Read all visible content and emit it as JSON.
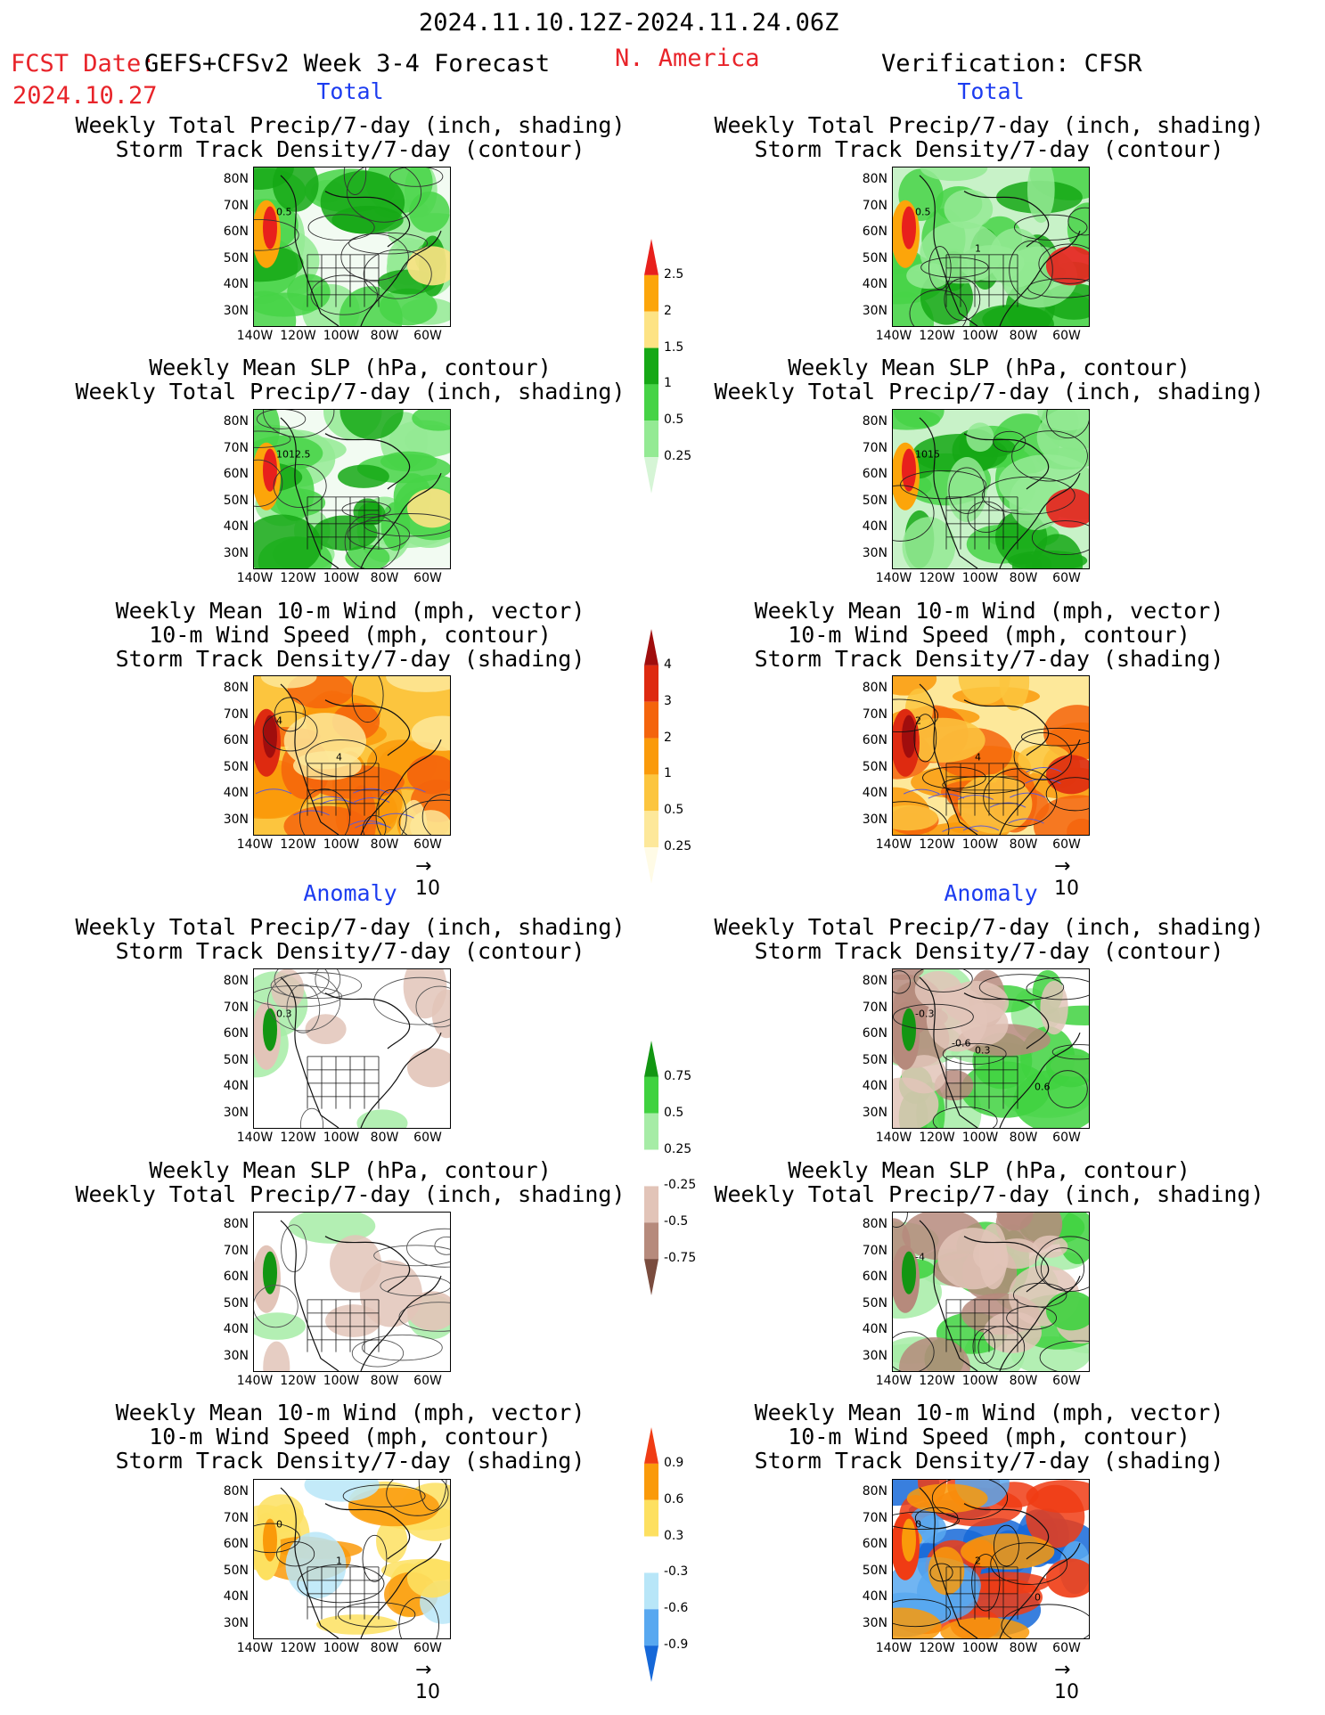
{
  "header": {
    "title": "2024.11.10.12Z-2024.11.24.06Z",
    "fcst_label": "FCST Date:",
    "model": "GEFS+CFSv2 Week 3-4 Forecast",
    "region": "N. America",
    "verification": "Verification: CFSR",
    "fcst_date": "2024.10.27"
  },
  "sections": {
    "total": "Total",
    "anomaly": "Anomaly"
  },
  "titles": {
    "precip_track": "Weekly Total Precip/7-day (inch, shading)\nStorm Track Density/7-day (contour)",
    "slp_precip": "Weekly Mean SLP (hPa, contour)\nWeekly Total Precip/7-day (inch, shading)",
    "wind_track": "Weekly Mean 10-m Wind (mph, vector)\n10-m Wind Speed (mph, contour)\nStorm Track Density/7-day (shading)"
  },
  "axes": {
    "lat_labels": [
      "80N",
      "70N",
      "60N",
      "50N",
      "40N",
      "30N"
    ],
    "lon_labels": [
      "140W",
      "120W",
      "100W",
      "80W",
      "60W"
    ]
  },
  "vector_ref": "10",
  "colorbars": {
    "precip_total": {
      "labels": [
        "2.5",
        "2",
        "1.5",
        "1",
        "0.5",
        "0.25"
      ],
      "colors": [
        "#e8201c",
        "#fca50a",
        "#fde384",
        "#15a815",
        "#46d346",
        "#94ea94",
        "#d6f5d6"
      ]
    },
    "track_total": {
      "labels": [
        "4",
        "3",
        "2",
        "1",
        "0.5",
        "0.25"
      ],
      "colors": [
        "#a00d0d",
        "#de2a10",
        "#f4640c",
        "#fa9a0a",
        "#fcc53e",
        "#fde89a",
        "#fffbe6"
      ]
    },
    "precip_anom": {
      "labels": [
        "0.75",
        "0.5",
        "0.25",
        "-0.25",
        "-0.5",
        "-0.75"
      ],
      "colors": [
        "#129612",
        "#3fd23f",
        "#a6eca6",
        "#ffffff",
        "#e2c4b8",
        "#b68a7c",
        "#7a4c3e"
      ]
    },
    "track_anom": {
      "labels": [
        "0.9",
        "0.6",
        "0.3",
        "-0.3",
        "-0.6",
        "-0.9"
      ],
      "colors": [
        "#f03c14",
        "#fa9a0a",
        "#fde060",
        "#ffffff",
        "#b8e6f8",
        "#58a8f0",
        "#1668d8"
      ]
    }
  },
  "panel_labels": {
    "fc_track_total": [
      "0.5"
    ],
    "obs_track_total": [
      "0.5",
      "1"
    ],
    "fc_slp_total": [
      "1012.5"
    ],
    "obs_slp_total": [
      "1015"
    ],
    "fc_wind_total": [
      "4",
      "4"
    ],
    "obs_wind_total": [
      "2",
      "4"
    ],
    "fc_track_anom": [
      "0.3"
    ],
    "obs_track_anom": [
      "-0.3",
      "0.3",
      "0.6",
      "-0.6"
    ],
    "obs_slp_anom": [
      "-4"
    ],
    "fc_wind_anom": [
      "0",
      "1"
    ],
    "obs_wind_anom": [
      "0",
      "2",
      "0"
    ]
  }
}
